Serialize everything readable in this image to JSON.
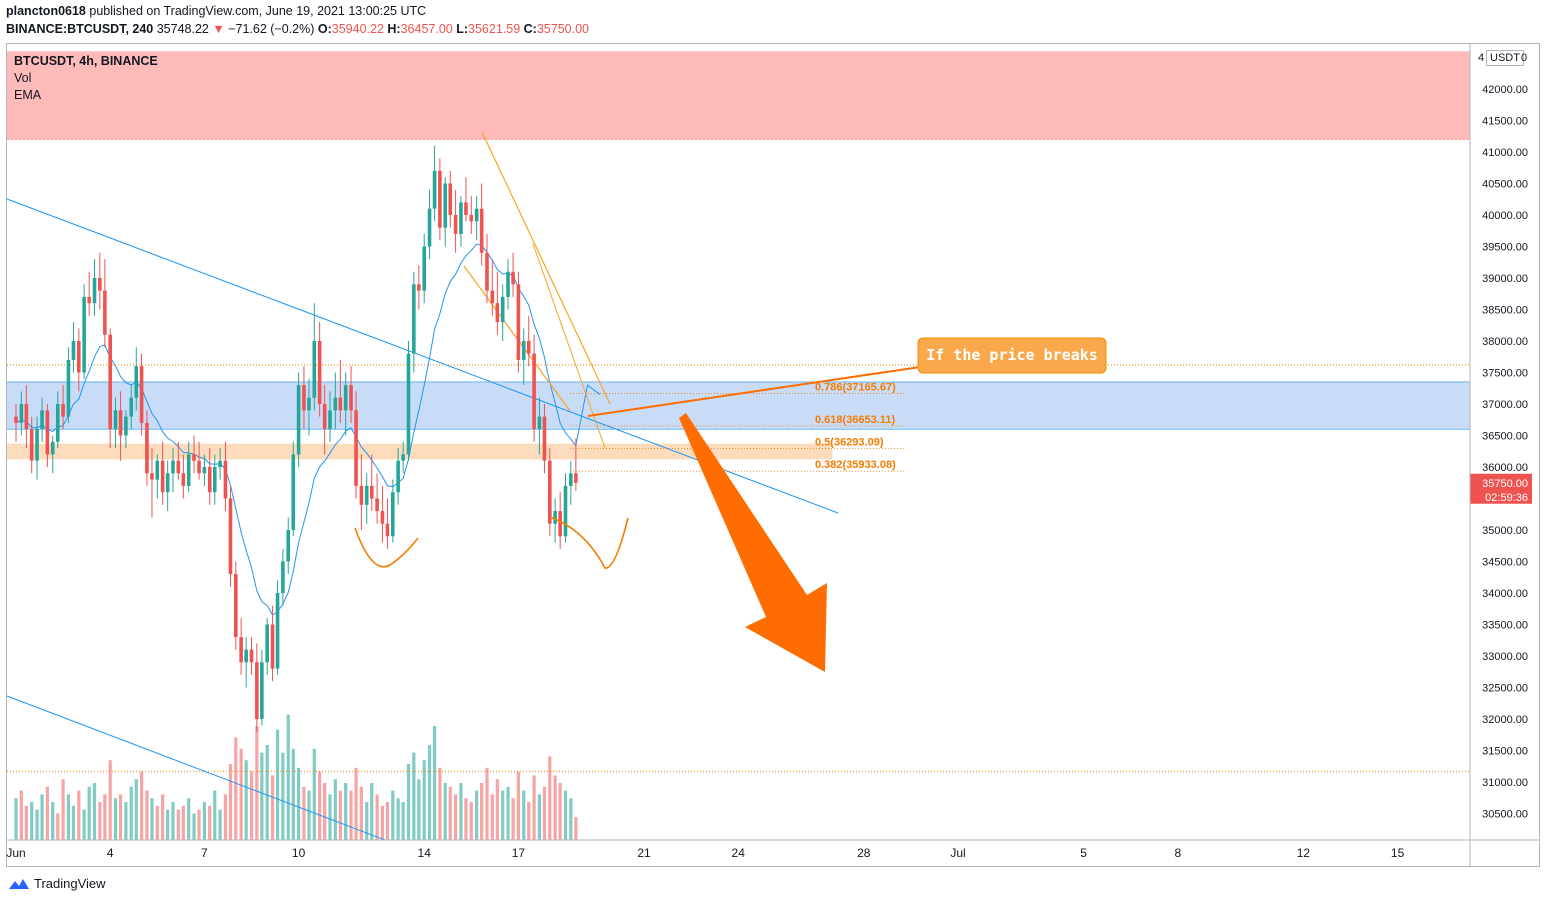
{
  "header": {
    "author": "plancton0618",
    "published": "published on TradingView.com, June 19, 2021 13:00:25 UTC",
    "symbol": "BINANCE:BTCUSDT, 240",
    "last": "35748.22",
    "change": "−71.62 (−0.2%)",
    "o_label": "O:",
    "o": "35940.22",
    "h_label": "H:",
    "h": "36457.00",
    "l_label": "L:",
    "l": "35621.59",
    "c_label": "C:",
    "c": "35750.00"
  },
  "legend": {
    "title": "BTCUSDT, 4h, BINANCE",
    "vol": "Vol",
    "ema": "EMA"
  },
  "axis_unit": "USDT",
  "axis_unit_edge": "4",
  "axis_unit_zero": "0",
  "price_tag": {
    "price": "35750.00",
    "countdown": "02:59:36"
  },
  "footer": {
    "brand": "TradingView"
  },
  "colors": {
    "up": "#26a69a",
    "down": "#ef5350",
    "vol_up": "#80cbc4",
    "vol_down": "#f7a4a4",
    "ema": "#2196f3",
    "trend": "#2196f3",
    "fib": "#f57c00",
    "arrow": "#ff6d00",
    "resistance_zone": "#ffbaba",
    "blue_zone": "#c9dcf7",
    "orange_zone": "#fcdcbd"
  },
  "chart_data": {
    "type": "candlestick",
    "ylim": [
      30000,
      42500
    ],
    "y_ticks": [
      30500,
      31000,
      31500,
      32000,
      32500,
      33000,
      33500,
      34000,
      34500,
      35000,
      35500,
      36000,
      36500,
      37000,
      37500,
      38000,
      38500,
      39000,
      39500,
      40000,
      40500,
      41000,
      41500,
      42000
    ],
    "y_tick_labels": [
      "30500.00",
      "31000.00",
      "31500.00",
      "32000.00",
      "32500.00",
      "33000.00",
      "33500.00",
      "34000.00",
      "34500.00",
      "35000.00",
      "35500.00",
      "36000.00",
      "36500.00",
      "37000.00",
      "37500.00",
      "38000.00",
      "38500.00",
      "39000.00",
      "39500.00",
      "40000.00",
      "40500.00",
      "41000.00",
      "41500.00",
      "42000.00"
    ],
    "x_ticks": [
      {
        "day": 1,
        "label": "Jun"
      },
      {
        "day": 4,
        "label": "4"
      },
      {
        "day": 7,
        "label": "7"
      },
      {
        "day": 10,
        "label": "10"
      },
      {
        "day": 14,
        "label": "14"
      },
      {
        "day": 17,
        "label": "17"
      },
      {
        "day": 21,
        "label": "21"
      },
      {
        "day": 24,
        "label": "24"
      },
      {
        "day": 28,
        "label": "28"
      },
      {
        "day": 31,
        "label": "Jul"
      },
      {
        "day": 35,
        "label": "5"
      },
      {
        "day": 38,
        "label": "8"
      },
      {
        "day": 42,
        "label": "12"
      },
      {
        "day": 45,
        "label": "15"
      }
    ],
    "candles": [
      [
        1.0,
        36800,
        37000,
        36400,
        36700
      ],
      [
        1.17,
        36700,
        37200,
        36500,
        37000
      ],
      [
        1.33,
        37000,
        37300,
        36300,
        36600
      ],
      [
        1.5,
        36600,
        36800,
        35900,
        36100
      ],
      [
        1.67,
        36100,
        36800,
        35800,
        36600
      ],
      [
        1.83,
        36600,
        37100,
        36400,
        36900
      ],
      [
        2.0,
        36900,
        37000,
        36000,
        36200
      ],
      [
        2.17,
        36200,
        36500,
        35900,
        36400
      ],
      [
        2.33,
        36400,
        37200,
        36300,
        37000
      ],
      [
        2.5,
        37000,
        37300,
        36600,
        36800
      ],
      [
        2.67,
        36800,
        37900,
        36700,
        37700
      ],
      [
        2.83,
        37700,
        38300,
        37500,
        38000
      ],
      [
        3.0,
        38000,
        38200,
        37200,
        37500
      ],
      [
        3.17,
        37500,
        38900,
        37400,
        38700
      ],
      [
        3.33,
        38700,
        39100,
        38400,
        38600
      ],
      [
        3.5,
        38600,
        39300,
        38400,
        39000
      ],
      [
        3.67,
        39000,
        39400,
        38500,
        38800
      ],
      [
        3.83,
        38800,
        39300,
        37900,
        38100
      ],
      [
        4.0,
        38100,
        38200,
        36300,
        36600
      ],
      [
        4.17,
        36600,
        37100,
        36300,
        36900
      ],
      [
        4.33,
        36900,
        37200,
        36100,
        36500
      ],
      [
        4.5,
        36500,
        36900,
        36300,
        36800
      ],
      [
        4.67,
        36800,
        37300,
        36600,
        37100
      ],
      [
        4.83,
        37100,
        37900,
        36900,
        37600
      ],
      [
        5.0,
        37600,
        37800,
        36500,
        36700
      ],
      [
        5.17,
        36700,
        36900,
        35700,
        35900
      ],
      [
        5.33,
        35900,
        36300,
        35200,
        35800
      ],
      [
        5.5,
        35800,
        36200,
        35500,
        36100
      ],
      [
        5.67,
        36100,
        36400,
        35400,
        35600
      ],
      [
        5.83,
        35600,
        36100,
        35300,
        35900
      ],
      [
        6.0,
        35900,
        36300,
        35600,
        36100
      ],
      [
        6.17,
        36100,
        36400,
        35800,
        35900
      ],
      [
        6.33,
        35900,
        36200,
        35500,
        35700
      ],
      [
        6.5,
        35700,
        36400,
        35600,
        36200
      ],
      [
        6.67,
        36200,
        36500,
        35900,
        36100
      ],
      [
        6.83,
        36100,
        36400,
        35800,
        35900
      ],
      [
        7.0,
        35900,
        36200,
        35700,
        36000
      ],
      [
        7.17,
        36000,
        36300,
        35400,
        35600
      ],
      [
        7.33,
        35600,
        36200,
        35400,
        36000
      ],
      [
        7.5,
        36000,
        36300,
        35800,
        36100
      ],
      [
        7.67,
        36100,
        36400,
        35300,
        35500
      ],
      [
        7.83,
        35500,
        35700,
        34100,
        34300
      ],
      [
        8.0,
        34300,
        34500,
        33100,
        33300
      ],
      [
        8.17,
        33300,
        33600,
        32700,
        32900
      ],
      [
        8.33,
        32900,
        33300,
        32500,
        33100
      ],
      [
        8.5,
        33100,
        33300,
        32700,
        32900
      ],
      [
        8.67,
        32900,
        33200,
        31800,
        32000
      ],
      [
        8.83,
        32000,
        33100,
        31900,
        32900
      ],
      [
        9.0,
        32900,
        33600,
        32700,
        33500
      ],
      [
        9.17,
        33500,
        33800,
        32600,
        32800
      ],
      [
        9.33,
        32800,
        34200,
        32700,
        34000
      ],
      [
        9.5,
        34000,
        34700,
        33800,
        34500
      ],
      [
        9.67,
        34500,
        35200,
        34300,
        35000
      ],
      [
        9.83,
        35000,
        36400,
        34900,
        36200
      ],
      [
        10.0,
        36200,
        37500,
        36000,
        37300
      ],
      [
        10.17,
        37300,
        37600,
        36600,
        36900
      ],
      [
        10.33,
        36900,
        37400,
        36500,
        37100
      ],
      [
        10.5,
        37100,
        38600,
        36900,
        38000
      ],
      [
        10.67,
        38000,
        38300,
        36800,
        37000
      ],
      [
        10.83,
        37000,
        37300,
        36200,
        36600
      ],
      [
        11.0,
        36600,
        37200,
        36400,
        36900
      ],
      [
        11.17,
        36900,
        37500,
        36600,
        37100
      ],
      [
        11.33,
        37100,
        37700,
        36700,
        36900
      ],
      [
        11.5,
        36900,
        37500,
        36500,
        37300
      ],
      [
        11.67,
        37300,
        37600,
        36700,
        36900
      ],
      [
        11.83,
        36900,
        37200,
        35500,
        35700
      ],
      [
        12.0,
        35700,
        36200,
        35000,
        35400
      ],
      [
        12.17,
        35400,
        35900,
        35100,
        35700
      ],
      [
        12.33,
        35700,
        36200,
        35300,
        35500
      ],
      [
        12.5,
        35500,
        35900,
        35100,
        35300
      ],
      [
        12.67,
        35300,
        35700,
        34800,
        35100
      ],
      [
        12.83,
        35100,
        35500,
        34700,
        34900
      ],
      [
        13.0,
        34900,
        35800,
        34800,
        35600
      ],
      [
        13.17,
        35600,
        36300,
        35400,
        36100
      ],
      [
        13.33,
        36100,
        36400,
        35900,
        36200
      ],
      [
        13.5,
        36200,
        38000,
        36100,
        37800
      ],
      [
        13.67,
        37800,
        39100,
        37500,
        38900
      ],
      [
        13.83,
        38900,
        39200,
        38500,
        38800
      ],
      [
        14.0,
        38800,
        39700,
        38600,
        39500
      ],
      [
        14.17,
        39500,
        40400,
        39300,
        40100
      ],
      [
        14.33,
        40100,
        41100,
        39900,
        40700
      ],
      [
        14.5,
        40700,
        40900,
        39600,
        39800
      ],
      [
        14.67,
        39800,
        40600,
        39500,
        40500
      ],
      [
        14.83,
        40500,
        40700,
        39800,
        40000
      ],
      [
        15.0,
        40000,
        40400,
        39400,
        39700
      ],
      [
        15.17,
        39700,
        40300,
        39500,
        40200
      ],
      [
        15.33,
        40200,
        40600,
        39900,
        40000
      ],
      [
        15.5,
        40000,
        40300,
        39700,
        39900
      ],
      [
        15.67,
        39900,
        40300,
        39600,
        40100
      ],
      [
        15.83,
        40100,
        40500,
        39200,
        39400
      ],
      [
        16.0,
        39400,
        39700,
        38600,
        38800
      ],
      [
        16.17,
        38800,
        39300,
        38400,
        38600
      ],
      [
        16.33,
        38600,
        39100,
        38100,
        38300
      ],
      [
        16.5,
        38300,
        38900,
        38000,
        38700
      ],
      [
        16.67,
        38700,
        39300,
        38500,
        39100
      ],
      [
        16.83,
        39100,
        39400,
        38700,
        38900
      ],
      [
        17.0,
        38900,
        39100,
        37500,
        37700
      ],
      [
        17.17,
        37700,
        38200,
        37300,
        38000
      ],
      [
        17.33,
        38000,
        38400,
        37600,
        37800
      ],
      [
        17.5,
        37800,
        38100,
        36400,
        36600
      ],
      [
        17.67,
        36600,
        37100,
        36200,
        36800
      ],
      [
        17.83,
        36800,
        37000,
        35900,
        36100
      ],
      [
        18.0,
        36100,
        36300,
        34900,
        35100
      ],
      [
        18.17,
        35100,
        35500,
        34800,
        35300
      ],
      [
        18.33,
        35300,
        35600,
        34700,
        34900
      ],
      [
        18.5,
        34900,
        35900,
        34800,
        35700
      ],
      [
        18.67,
        35700,
        36100,
        35400,
        35900
      ],
      [
        18.83,
        35900,
        36457,
        35621,
        35750
      ]
    ],
    "volumes": [
      [
        1.0,
        1.1,
        1
      ],
      [
        1.17,
        1.3,
        0
      ],
      [
        1.33,
        0.9,
        0
      ],
      [
        1.5,
        1.0,
        1
      ],
      [
        1.67,
        0.8,
        1
      ],
      [
        1.83,
        1.2,
        1
      ],
      [
        2.0,
        1.4,
        0
      ],
      [
        2.17,
        1.0,
        1
      ],
      [
        2.33,
        0.7,
        0
      ],
      [
        2.5,
        1.6,
        0
      ],
      [
        2.67,
        1.2,
        1
      ],
      [
        2.83,
        0.9,
        1
      ],
      [
        3.0,
        1.3,
        0
      ],
      [
        3.17,
        0.8,
        1
      ],
      [
        3.33,
        1.4,
        1
      ],
      [
        3.5,
        1.5,
        1
      ],
      [
        3.67,
        1.0,
        0
      ],
      [
        3.83,
        1.2,
        0
      ],
      [
        4.0,
        2.1,
        0
      ],
      [
        4.17,
        1.1,
        1
      ],
      [
        4.33,
        1.2,
        0
      ],
      [
        4.5,
        1.0,
        1
      ],
      [
        4.67,
        1.4,
        1
      ],
      [
        4.83,
        1.6,
        1
      ],
      [
        5.0,
        1.8,
        0
      ],
      [
        5.17,
        1.3,
        0
      ],
      [
        5.33,
        1.1,
        1
      ],
      [
        5.5,
        0.9,
        0
      ],
      [
        5.67,
        1.2,
        0
      ],
      [
        5.83,
        0.8,
        1
      ],
      [
        6.0,
        1.0,
        1
      ],
      [
        6.17,
        0.8,
        0
      ],
      [
        6.33,
        0.9,
        0
      ],
      [
        6.5,
        1.1,
        1
      ],
      [
        6.67,
        0.7,
        1
      ],
      [
        6.83,
        0.8,
        0
      ],
      [
        7.0,
        1.0,
        1
      ],
      [
        7.17,
        0.9,
        0
      ],
      [
        7.33,
        1.3,
        1
      ],
      [
        7.5,
        0.8,
        1
      ],
      [
        7.67,
        1.2,
        0
      ],
      [
        7.83,
        2.0,
        0
      ],
      [
        8.0,
        2.7,
        0
      ],
      [
        8.17,
        2.4,
        0
      ],
      [
        8.33,
        2.1,
        1
      ],
      [
        8.5,
        1.8,
        0
      ],
      [
        8.67,
        3.0,
        0
      ],
      [
        8.83,
        2.3,
        1
      ],
      [
        9.0,
        2.5,
        1
      ],
      [
        9.17,
        1.7,
        0
      ],
      [
        9.33,
        2.9,
        1
      ],
      [
        9.5,
        2.3,
        1
      ],
      [
        9.67,
        3.3,
        1
      ],
      [
        9.83,
        2.4,
        1
      ],
      [
        10.0,
        1.9,
        1
      ],
      [
        10.17,
        1.4,
        0
      ],
      [
        10.33,
        1.3,
        1
      ],
      [
        10.5,
        2.4,
        1
      ],
      [
        10.67,
        1.8,
        0
      ],
      [
        10.83,
        1.5,
        0
      ],
      [
        11.0,
        1.2,
        1
      ],
      [
        11.17,
        1.6,
        1
      ],
      [
        11.33,
        1.3,
        0
      ],
      [
        11.5,
        1.5,
        1
      ],
      [
        11.67,
        1.3,
        0
      ],
      [
        11.83,
        1.9,
        0
      ],
      [
        12.0,
        1.4,
        0
      ],
      [
        12.17,
        1.0,
        1
      ],
      [
        12.33,
        1.5,
        1
      ],
      [
        12.5,
        1.2,
        0
      ],
      [
        12.67,
        0.9,
        0
      ],
      [
        12.83,
        1.0,
        0
      ],
      [
        13.0,
        1.3,
        1
      ],
      [
        13.17,
        1.1,
        1
      ],
      [
        13.33,
        1.0,
        1
      ],
      [
        13.5,
        2.0,
        1
      ],
      [
        13.67,
        2.3,
        1
      ],
      [
        13.83,
        1.6,
        1
      ],
      [
        14.0,
        2.1,
        1
      ],
      [
        14.17,
        2.5,
        1
      ],
      [
        14.33,
        3.0,
        1
      ],
      [
        14.5,
        1.9,
        0
      ],
      [
        14.67,
        1.5,
        1
      ],
      [
        14.83,
        1.4,
        0
      ],
      [
        15.0,
        1.2,
        0
      ],
      [
        15.17,
        1.5,
        1
      ],
      [
        15.33,
        1.1,
        0
      ],
      [
        15.5,
        1.0,
        0
      ],
      [
        15.67,
        1.3,
        1
      ],
      [
        15.83,
        1.5,
        0
      ],
      [
        16.0,
        1.9,
        0
      ],
      [
        16.17,
        1.2,
        0
      ],
      [
        16.33,
        1.6,
        0
      ],
      [
        16.5,
        1.3,
        1
      ],
      [
        16.67,
        1.4,
        1
      ],
      [
        16.83,
        1.1,
        0
      ],
      [
        17.0,
        1.8,
        0
      ],
      [
        17.17,
        1.3,
        1
      ],
      [
        17.33,
        1.0,
        0
      ],
      [
        17.5,
        1.7,
        0
      ],
      [
        17.67,
        1.2,
        1
      ],
      [
        17.83,
        1.4,
        0
      ],
      [
        18.0,
        2.2,
        0
      ],
      [
        18.17,
        1.7,
        0
      ],
      [
        18.33,
        1.5,
        0
      ],
      [
        18.5,
        1.3,
        1
      ],
      [
        18.67,
        1.1,
        1
      ],
      [
        18.83,
        0.6,
        0
      ]
    ],
    "zones": [
      {
        "name": "resistance",
        "from": 41200,
        "to": 42600,
        "x_to_day": 49
      },
      {
        "name": "blue",
        "from": 36600,
        "to": 37350,
        "x_to_day": 49
      },
      {
        "name": "orange",
        "from": 36120,
        "to": 36370,
        "x_to_day": 27
      }
    ],
    "fib_levels": [
      {
        "ratio_label": "0.786(37165.67)",
        "price": 37165.67
      },
      {
        "ratio_label": "0.618(36653.11)",
        "price": 36653.11
      },
      {
        "ratio_label": "0.5(36293.09)",
        "price": 36293.09
      },
      {
        "ratio_label": "0.382(35933.08)",
        "price": 35933.08
      }
    ],
    "annotation": "If the price breaks",
    "horizontal_lines": [
      37620,
      31170
    ]
  }
}
